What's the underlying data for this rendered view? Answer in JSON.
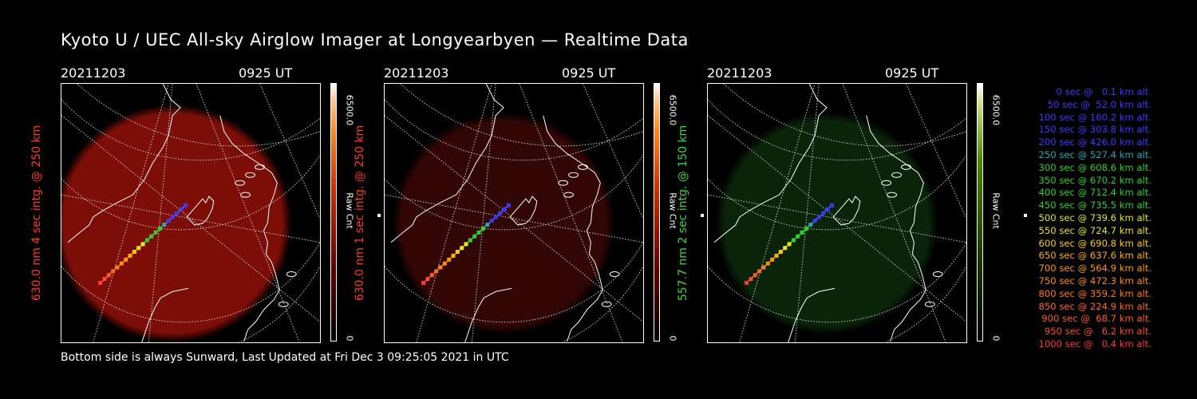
{
  "title": "Kyoto U / UEC All-sky Airglow Imager at Longyearbyen — Realtime Data",
  "footer": "Bottom side is always Sunward, Last Updated at Fri Dec  3 09:25:05 2021 in UTC",
  "panels": [
    {
      "date": "20211203",
      "time": "0925 UT",
      "ylabel": "630.0 nm 4 sec intg. @ 250 km",
      "label_color": "#ff3b1f",
      "cbar_max": "6500.0",
      "cbar_min": "0",
      "cbar_label": "Raw Cnt",
      "glow_color": "#8a1008",
      "glow_opacity": 0.9
    },
    {
      "date": "20211203",
      "time": "0925 UT",
      "ylabel": "630.0 nm 1 sec intg. @ 250 km",
      "label_color": "#ff3b1f",
      "cbar_max": "6500.0",
      "cbar_min": "0",
      "cbar_label": "Raw Cnt",
      "glow_color": "#3a0704",
      "glow_opacity": 0.85
    },
    {
      "date": "20211203",
      "time": "0925 UT",
      "ylabel": "557.7 nm 2 sec intg. @ 150 km",
      "label_color": "#3fd63f",
      "cbar_max": "6500.0",
      "cbar_min": "0",
      "cbar_label": "Raw Cnt",
      "glow_color": "#0b2a0b",
      "glow_opacity": 0.85
    }
  ],
  "legend": [
    {
      "text": "0 sec @   0.1 km alt.",
      "color": "#3a3aff"
    },
    {
      "text": "50 sec @  52.0 km alt.",
      "color": "#3a3aff"
    },
    {
      "text": "100 sec @ 160.2 km alt.",
      "color": "#3a3aff"
    },
    {
      "text": "150 sec @ 303.8 km alt.",
      "color": "#3a3aff"
    },
    {
      "text": "200 sec @ 426.0 km alt.",
      "color": "#3a3aff"
    },
    {
      "text": "250 sec @ 527.4 km alt.",
      "color": "#2aa6b0"
    },
    {
      "text": "300 sec @ 608.6 km alt.",
      "color": "#2ed12e"
    },
    {
      "text": "350 sec @ 670.2 km alt.",
      "color": "#2ed12e"
    },
    {
      "text": "400 sec @ 712.4 km alt.",
      "color": "#2ed12e"
    },
    {
      "text": "450 sec @ 735.5 km alt.",
      "color": "#2ed12e"
    },
    {
      "text": "500 sec @ 739.6 km alt.",
      "color": "#d8ee20"
    },
    {
      "text": "550 sec @ 724.7 km alt.",
      "color": "#e8e81c"
    },
    {
      "text": "600 sec @ 690.8 km alt.",
      "color": "#ffd000"
    },
    {
      "text": "650 sec @ 637.6 km alt.",
      "color": "#ffb000"
    },
    {
      "text": "700 sec @ 564.9 km alt.",
      "color": "#ff9a00"
    },
    {
      "text": "750 sec @ 472.3 km alt.",
      "color": "#ff8c10"
    },
    {
      "text": "800 sec @ 359.2 km alt.",
      "color": "#ff7a18"
    },
    {
      "text": "850 sec @ 224.9 km alt.",
      "color": "#ff6a20"
    },
    {
      "text": "900 sec @  68.7 km alt.",
      "color": "#ff5a28"
    },
    {
      "text": "950 sec @   6.2 km alt.",
      "color": "#ff4a30"
    },
    {
      "text": "1000 sec @   0.4 km alt.",
      "color": "#ff3a30"
    }
  ]
}
